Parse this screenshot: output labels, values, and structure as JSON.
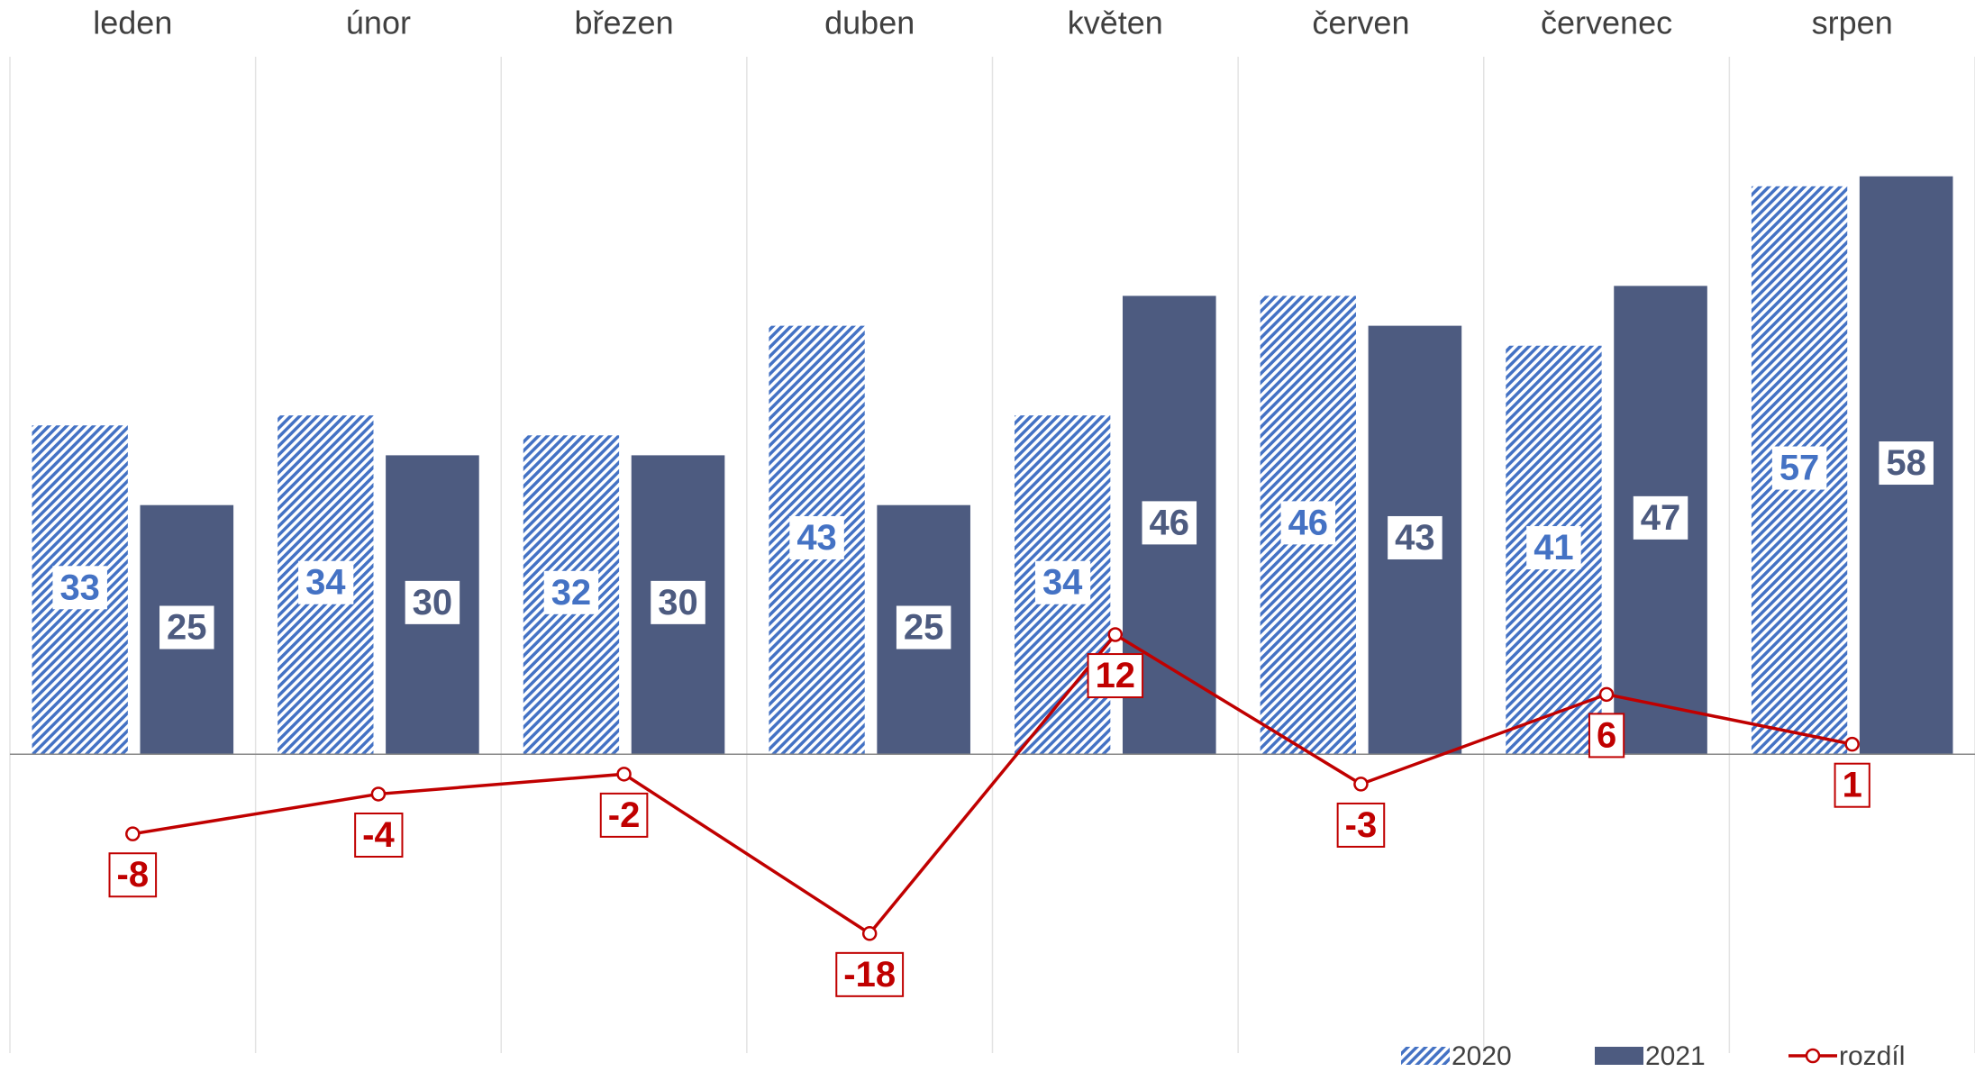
{
  "chart_data": {
    "type": "bar",
    "categories": [
      "leden",
      "únor",
      "březen",
      "duben",
      "květen",
      "červen",
      "červenec",
      "srpen"
    ],
    "series": [
      {
        "name": "2020",
        "type": "bar",
        "pattern": "hatch",
        "color": "#4472c4",
        "values": [
          33,
          34,
          32,
          43,
          34,
          46,
          41,
          57
        ]
      },
      {
        "name": "2021",
        "type": "bar",
        "color": "#4d5b80",
        "values": [
          25,
          30,
          30,
          25,
          46,
          43,
          47,
          58
        ]
      },
      {
        "name": "rozdíl",
        "type": "line",
        "color": "#c00000",
        "values": [
          -8,
          -4,
          -2,
          -18,
          12,
          -3,
          6,
          1
        ]
      }
    ],
    "ylim": [
      -30,
      70
    ],
    "legend": "bottom-right"
  }
}
